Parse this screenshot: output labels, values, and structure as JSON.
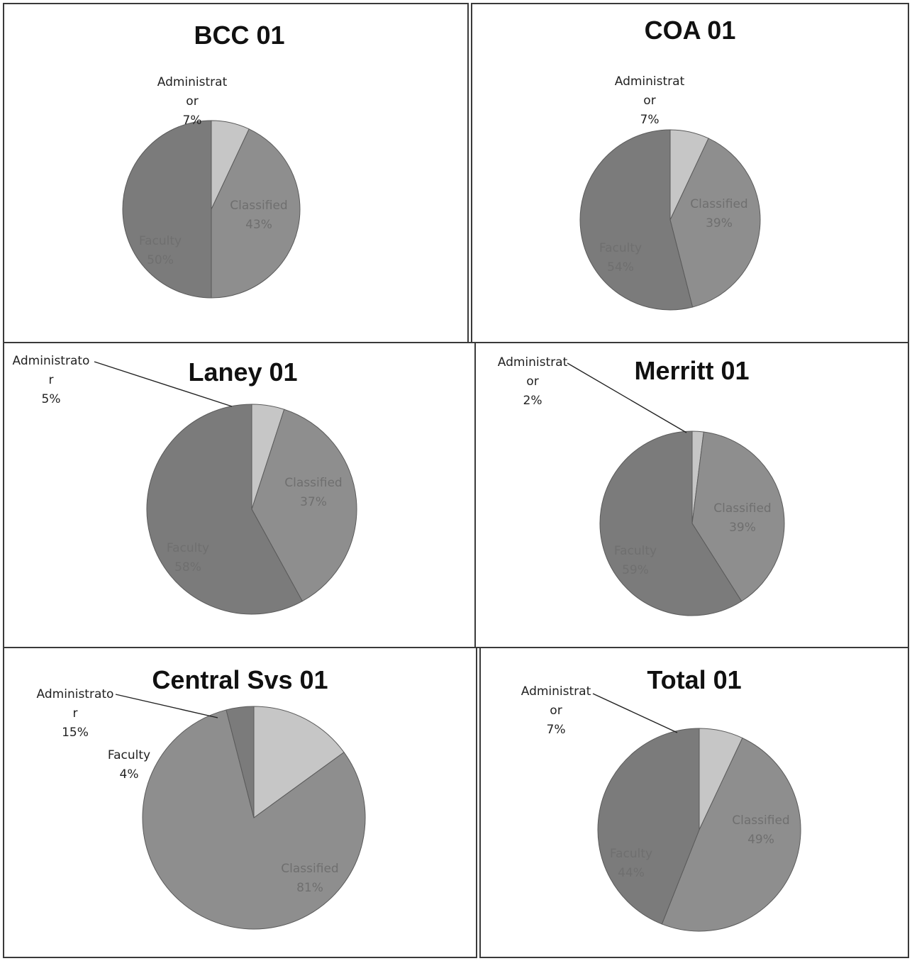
{
  "colors": {
    "Classified": "#8e8e8e",
    "Faculty": "#7b7b7b",
    "Administrator": "#c6c6c6"
  },
  "chart_data": [
    {
      "type": "pie",
      "title": "BCC 01",
      "slices": [
        {
          "name": "Administrator",
          "value": 7,
          "label": [
            "Administrat",
            "or",
            "7%"
          ]
        },
        {
          "name": "Classified",
          "value": 43,
          "label": [
            "Classified",
            "43%"
          ]
        },
        {
          "name": "Faculty",
          "value": 50,
          "label": [
            "Faculty",
            "50%"
          ]
        }
      ]
    },
    {
      "type": "pie",
      "title": "COA 01",
      "slices": [
        {
          "name": "Administrator",
          "value": 7,
          "label": [
            "Administrat",
            "or",
            "7%"
          ]
        },
        {
          "name": "Classified",
          "value": 39,
          "label": [
            "Classified",
            "39%"
          ]
        },
        {
          "name": "Faculty",
          "value": 54,
          "label": [
            "Faculty",
            "54%"
          ]
        }
      ]
    },
    {
      "type": "pie",
      "title": "Laney 01",
      "slices": [
        {
          "name": "Administrator",
          "value": 5,
          "label": [
            "Administrato",
            "r",
            "5%"
          ]
        },
        {
          "name": "Classified",
          "value": 37,
          "label": [
            "Classified",
            "37%"
          ]
        },
        {
          "name": "Faculty",
          "value": 58,
          "label": [
            "Faculty",
            "58%"
          ]
        }
      ]
    },
    {
      "type": "pie",
      "title": "Merritt 01",
      "slices": [
        {
          "name": "Administrator",
          "value": 2,
          "label": [
            "Administrat",
            "or",
            "2%"
          ]
        },
        {
          "name": "Classified",
          "value": 39,
          "label": [
            "Classified",
            "39%"
          ]
        },
        {
          "name": "Faculty",
          "value": 59,
          "label": [
            "Faculty",
            "59%"
          ]
        }
      ]
    },
    {
      "type": "pie",
      "title": "Central Svs 01",
      "slices": [
        {
          "name": "Administrator",
          "value": 15,
          "label": [
            "Administrato",
            "r",
            "15%"
          ]
        },
        {
          "name": "Classified",
          "value": 81,
          "label": [
            "Classified",
            "81%"
          ]
        },
        {
          "name": "Faculty",
          "value": 4,
          "label": [
            "Faculty",
            "4%"
          ]
        }
      ]
    },
    {
      "type": "pie",
      "title": "Total 01",
      "slices": [
        {
          "name": "Administrator",
          "value": 7,
          "label": [
            "Administrat",
            "or",
            "7%"
          ]
        },
        {
          "name": "Classified",
          "value": 49,
          "label": [
            "Classified",
            "49%"
          ]
        },
        {
          "name": "Faculty",
          "value": 44,
          "label": [
            "Faculty",
            "44%"
          ]
        }
      ]
    }
  ]
}
